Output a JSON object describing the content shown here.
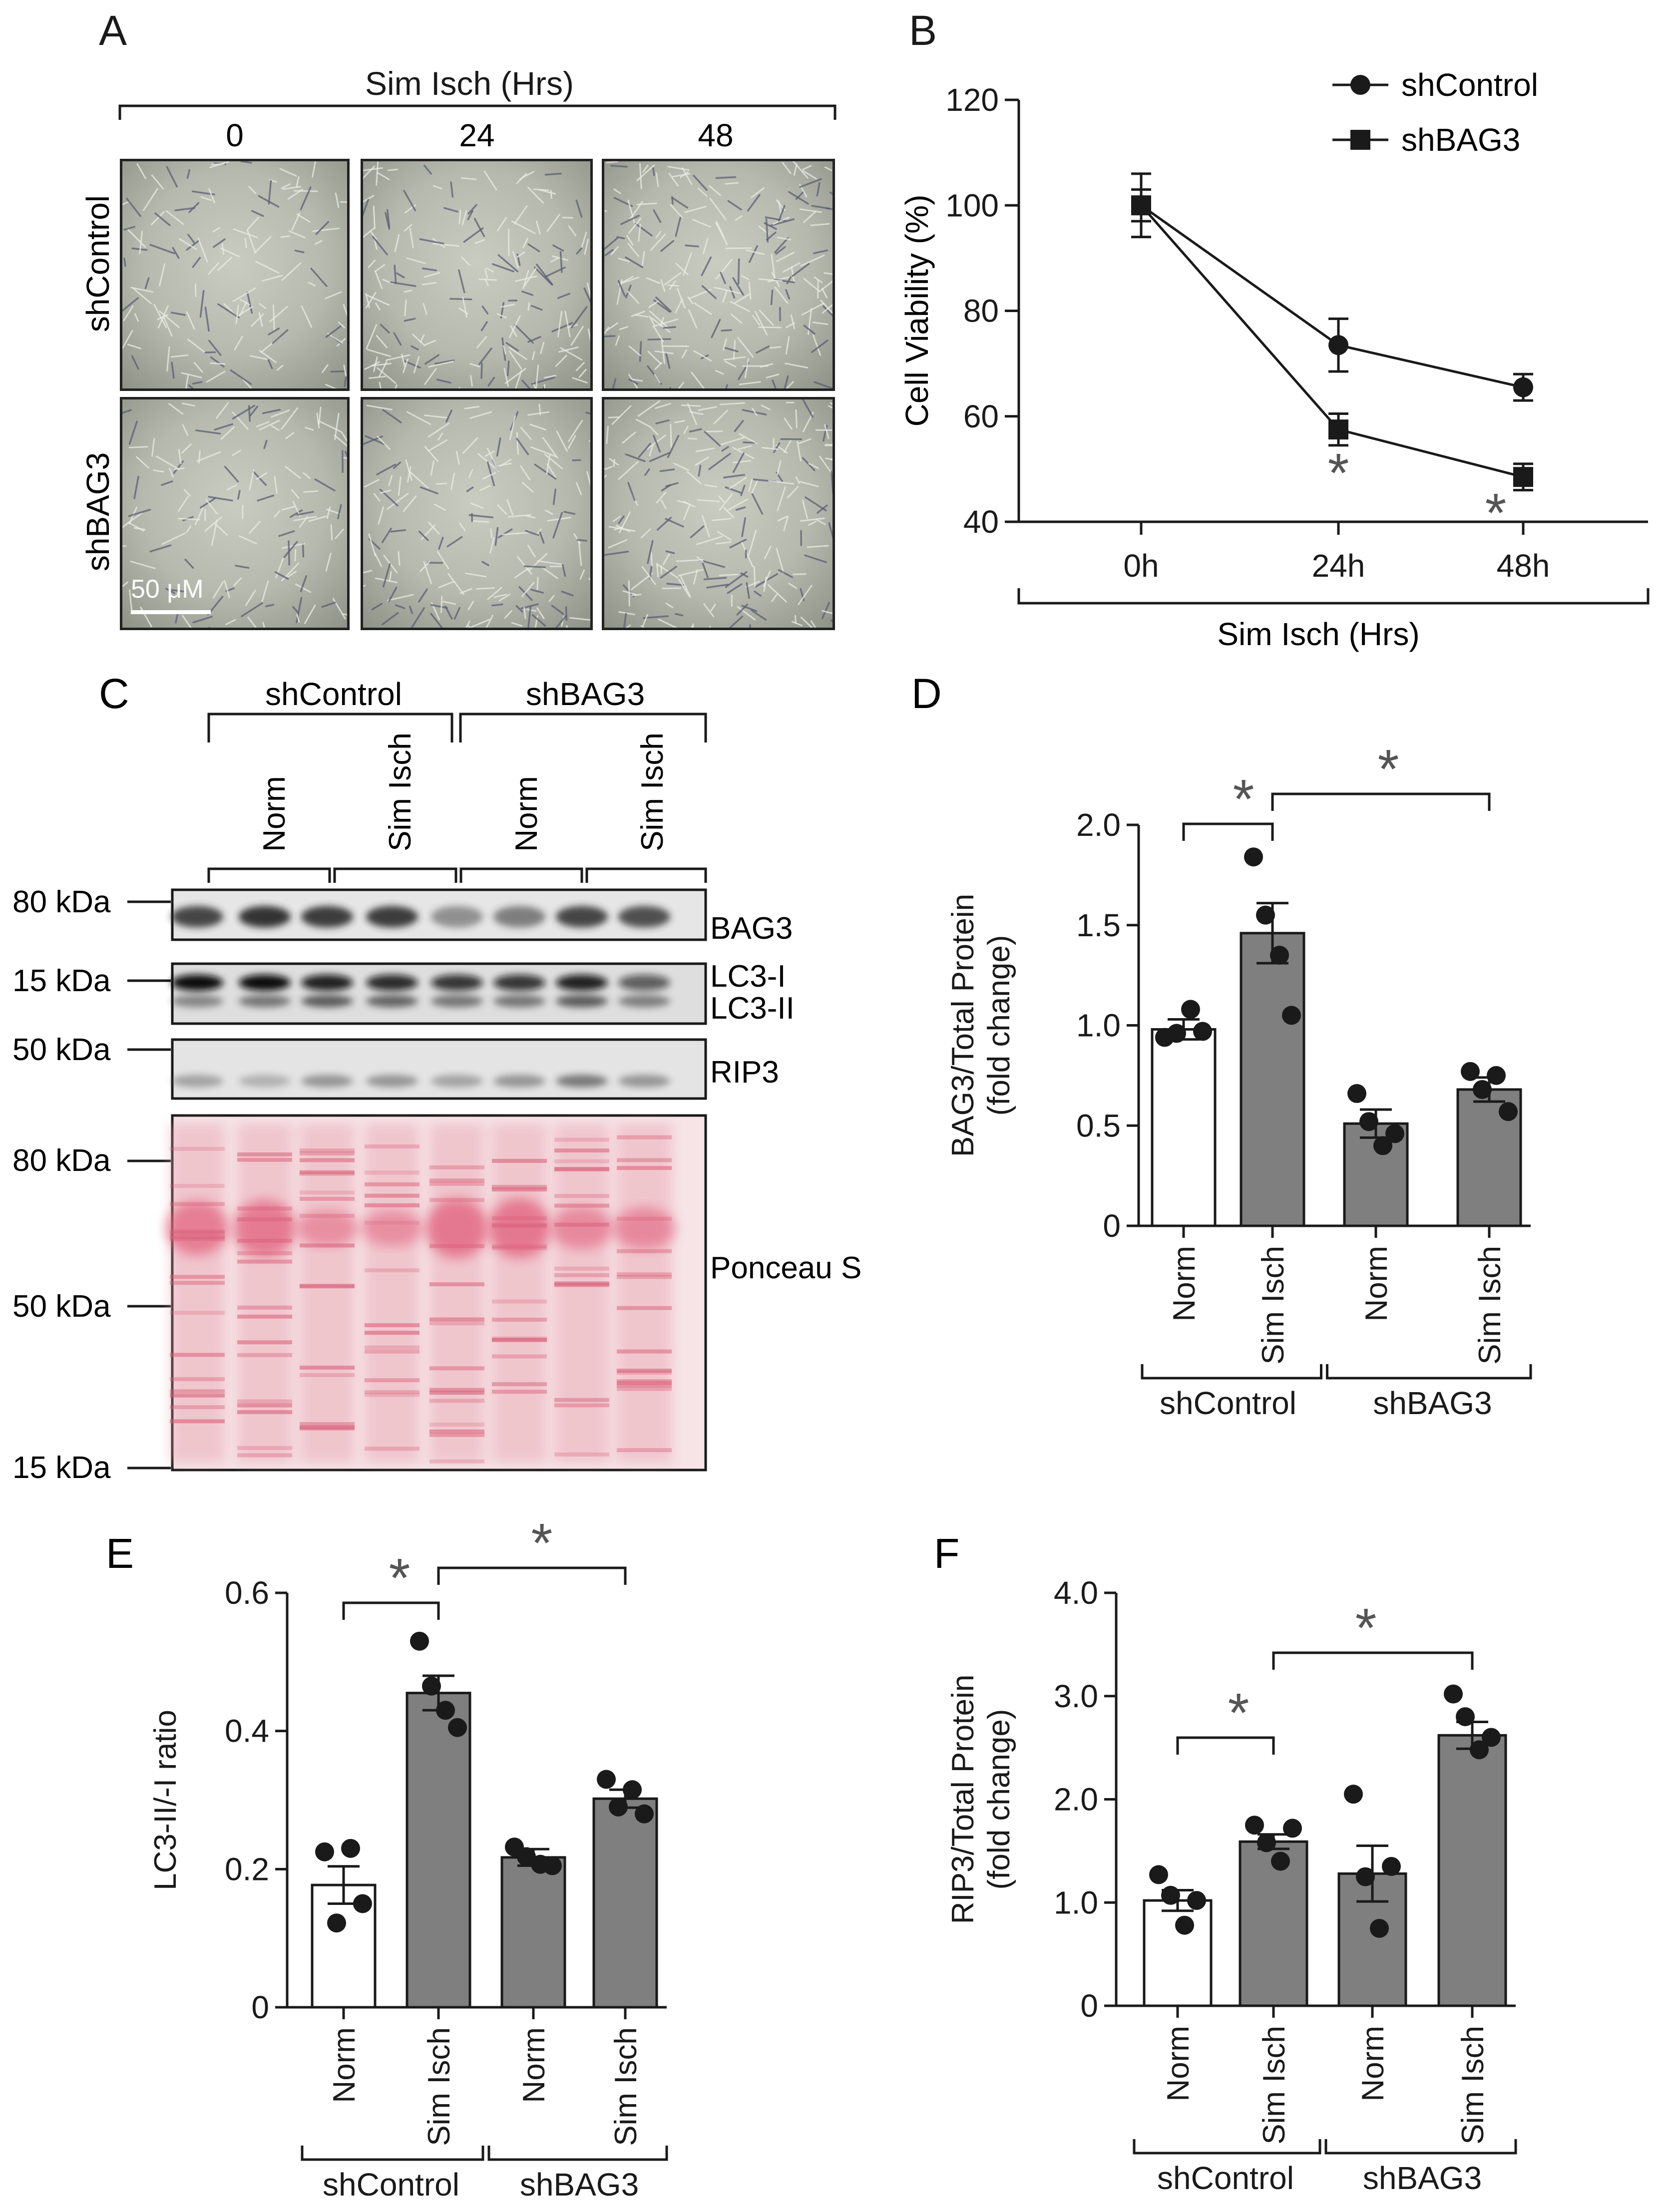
{
  "colors": {
    "ink": "#1a1a1a",
    "bar_fill": "#7f7f7f",
    "bar_open": "#ffffff",
    "ponceau": "#e88fa0",
    "micro_bg": "#b9bcb0"
  },
  "panel_labels": {
    "a": "A",
    "b": "B",
    "c": "C",
    "d": "D",
    "e": "E",
    "f": "F"
  },
  "panel_a": {
    "header": "Sim Isch (Hrs)",
    "time_labels": [
      "0",
      "24",
      "48"
    ],
    "row_labels": [
      "shControl",
      "shBAG3"
    ],
    "scale_bar": "50 μM"
  },
  "panel_c": {
    "group_labels": [
      "shControl",
      "shBAG3"
    ],
    "lane_labels": [
      "Norm",
      "Sim Isch",
      "Norm",
      "Sim Isch"
    ],
    "kda_labels": [
      "80 kDa",
      "15 kDa",
      "50 kDa",
      "80 kDa",
      "50 kDa",
      "15 kDa"
    ],
    "band_labels": [
      "BAG3",
      "LC3-I",
      "LC3-II",
      "RIP3",
      "Ponceau S"
    ],
    "intensities": {
      "bag3": [
        0.85,
        0.95,
        0.9,
        0.9,
        0.45,
        0.55,
        0.85,
        0.8
      ],
      "lc3i": [
        1.0,
        1.0,
        0.9,
        0.85,
        0.8,
        0.8,
        0.9,
        0.6
      ],
      "lc3ii": [
        0.5,
        0.6,
        0.75,
        0.7,
        0.6,
        0.6,
        0.75,
        0.55
      ],
      "rip3": [
        0.45,
        0.35,
        0.55,
        0.55,
        0.45,
        0.55,
        0.75,
        0.55
      ],
      "ponceau": [
        0.9,
        0.95,
        0.6,
        0.6,
        1.0,
        1.0,
        0.7,
        0.7
      ]
    }
  },
  "chart_data": [
    {
      "id": "B",
      "type": "line",
      "categories": [
        "0h",
        "24h",
        "48h"
      ],
      "xlabel": "Sim Isch (Hrs)",
      "ylabel": "Cell Viability (%)",
      "ylim": [
        40,
        120
      ],
      "yticks": [
        "40",
        "60",
        "80",
        "100",
        "120"
      ],
      "yticks_values": [
        40,
        60,
        80,
        100,
        120
      ],
      "series": [
        {
          "name": "shControl",
          "marker": "circle",
          "values": [
            100,
            73.5,
            65.5
          ],
          "err": [
            6,
            5,
            2.5
          ]
        },
        {
          "name": "shBAG3",
          "marker": "square",
          "values": [
            100,
            57.5,
            48.5
          ],
          "err": [
            3,
            3,
            2.5
          ]
        }
      ],
      "annotations": [
        {
          "text": "*",
          "at": "24h"
        },
        {
          "text": "*",
          "at": "48h"
        }
      ]
    },
    {
      "id": "D",
      "type": "bar",
      "categories": [
        "Norm",
        "Sim Isch",
        "Norm",
        "Sim Isch"
      ],
      "groups": [
        "shControl",
        "shBAG3"
      ],
      "ylabel": "BAG3/Total Protein\n(fold change)",
      "ylim": [
        0,
        2.0
      ],
      "yticks": [
        "0",
        "0.5",
        "1.0",
        "1.5",
        "2.0"
      ],
      "yticks_values": [
        0,
        0.5,
        1.0,
        1.5,
        2.0
      ],
      "values": [
        0.98,
        1.46,
        0.51,
        0.68
      ],
      "sem": [
        0.05,
        0.15,
        0.07,
        0.06
      ],
      "points": [
        [
          0.94,
          0.96,
          1.08,
          0.97
        ],
        [
          1.84,
          1.55,
          1.35,
          1.05
        ],
        [
          0.66,
          0.52,
          0.4,
          0.46
        ],
        [
          0.77,
          0.68,
          0.75,
          0.57
        ]
      ],
      "fills": [
        "open",
        "filled",
        "filled",
        "filled"
      ],
      "significance": [
        {
          "from": 0,
          "to": 1,
          "text": "*"
        },
        {
          "from": 1,
          "to": 3,
          "text": "*"
        }
      ]
    },
    {
      "id": "E",
      "type": "bar",
      "categories": [
        "Norm",
        "Sim Isch",
        "Norm",
        "Sim Isch"
      ],
      "groups": [
        "shControl",
        "shBAG3"
      ],
      "ylabel": "LC3-II/-I ratio",
      "ylim": [
        0,
        0.6
      ],
      "yticks": [
        "0",
        "0.2",
        "0.4",
        "0.6"
      ],
      "yticks_values": [
        0,
        0.2,
        0.4,
        0.6
      ],
      "values": [
        0.177,
        0.455,
        0.217,
        0.302
      ],
      "sem": [
        0.027,
        0.025,
        0.012,
        0.013
      ],
      "points": [
        [
          0.225,
          0.122,
          0.23,
          0.15
        ],
        [
          0.53,
          0.465,
          0.43,
          0.405
        ],
        [
          0.232,
          0.218,
          0.207,
          0.205
        ],
        [
          0.33,
          0.29,
          0.315,
          0.28
        ]
      ],
      "fills": [
        "open",
        "filled",
        "filled",
        "filled"
      ],
      "significance": [
        {
          "from": 0,
          "to": 1,
          "text": "*"
        },
        {
          "from": 1,
          "to": 3,
          "text": "*"
        }
      ]
    },
    {
      "id": "F",
      "type": "bar",
      "categories": [
        "Norm",
        "Sim Isch",
        "Norm",
        "Sim Isch"
      ],
      "groups": [
        "shControl",
        "shBAG3"
      ],
      "ylabel": "RIP3/Total Protein\n(fold change)",
      "ylim": [
        0,
        4.0
      ],
      "yticks": [
        "0",
        "1.0",
        "2.0",
        "3.0",
        "4.0"
      ],
      "yticks_values": [
        0,
        1.0,
        2.0,
        3.0,
        4.0
      ],
      "values": [
        1.02,
        1.59,
        1.28,
        2.62
      ],
      "sem": [
        0.1,
        0.07,
        0.27,
        0.13
      ],
      "points": [
        [
          1.27,
          1.07,
          0.78,
          1.02
        ],
        [
          1.75,
          1.58,
          1.4,
          1.72
        ],
        [
          2.05,
          1.25,
          0.75,
          1.35
        ],
        [
          3.02,
          2.8,
          2.48,
          2.6
        ]
      ],
      "fills": [
        "open",
        "filled",
        "filled",
        "filled"
      ],
      "significance": [
        {
          "from": 0,
          "to": 1,
          "text": "*"
        },
        {
          "from": 1,
          "to": 3,
          "text": "*"
        }
      ]
    }
  ]
}
